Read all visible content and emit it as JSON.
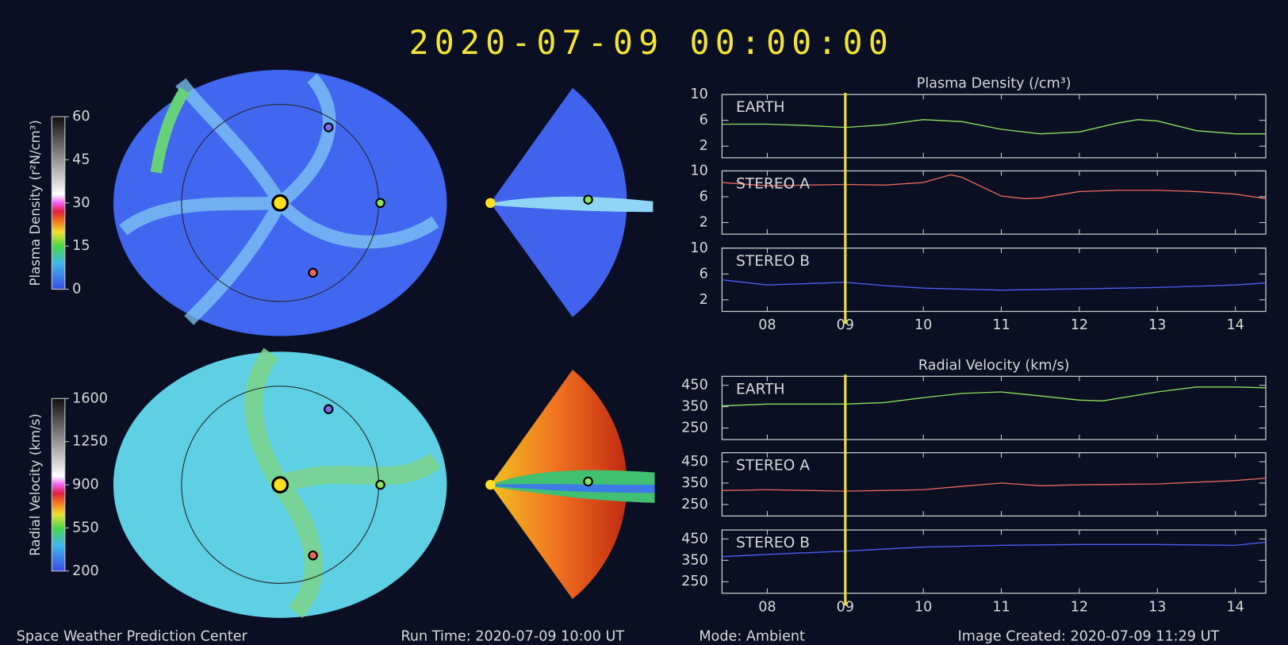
{
  "header": {
    "title": "2020-07-09  00:00:00"
  },
  "colorbars": [
    {
      "label": "Plasma Density (r²N/cm³)",
      "lim": [
        0,
        60
      ],
      "ticks": [
        0,
        15,
        30,
        45,
        60
      ]
    },
    {
      "label": "Radial Velocity (km/s)",
      "lim": [
        200,
        1600
      ],
      "ticks": [
        200,
        550,
        900,
        1250,
        1600
      ]
    }
  ],
  "chart_data": [
    {
      "type": "line",
      "title": "Plasma Density (/cm³)",
      "x": [
        7.42,
        8,
        8.5,
        9,
        9.5,
        10,
        10.5,
        11,
        11.5,
        12,
        12.5,
        12.75,
        13,
        13.5,
        14,
        14.39
      ],
      "series": [
        {
          "name": "EARTH",
          "color": "#8be25e",
          "values": [
            5.4,
            5.4,
            5.2,
            4.9,
            5.3,
            6.1,
            5.8,
            4.6,
            3.9,
            4.2,
            5.6,
            6.1,
            5.9,
            4.4,
            3.9,
            3.9
          ]
        }
      ],
      "xlim": [
        7.42,
        14.39
      ],
      "xticks": [
        8,
        9,
        10,
        11,
        12,
        13,
        14
      ],
      "ylim": [
        0.2,
        10
      ],
      "yticks": [
        2,
        6,
        10
      ],
      "vline": 9,
      "vline_color": "#f5e52a"
    },
    {
      "type": "line",
      "x": [
        7.42,
        8,
        9,
        9.5,
        10,
        10.35,
        10.5,
        11,
        11.3,
        11.5,
        12,
        12.5,
        13,
        13.5,
        14,
        14.39
      ],
      "series": [
        {
          "name": "STEREO A",
          "color": "#e8685a",
          "values": [
            8.2,
            7.7,
            7.9,
            7.8,
            8.2,
            9.4,
            9,
            6.1,
            5.7,
            5.8,
            6.8,
            7,
            7,
            6.8,
            6.4,
            5.7
          ]
        }
      ],
      "xlim": [
        7.42,
        14.39
      ],
      "xticks": [
        8,
        9,
        10,
        11,
        12,
        13,
        14
      ],
      "ylim": [
        0.2,
        10
      ],
      "yticks": [
        2,
        6,
        10
      ],
      "vline": 9,
      "vline_color": "#f5e52a"
    },
    {
      "type": "line",
      "x": [
        7.42,
        8,
        9,
        9.5,
        10,
        11,
        12,
        13,
        14,
        14.39
      ],
      "series": [
        {
          "name": "STEREO B",
          "color": "#4b5ff0",
          "values": [
            5.1,
            4.3,
            4.7,
            4.2,
            3.8,
            3.5,
            3.7,
            3.9,
            4.3,
            4.6
          ]
        }
      ],
      "xlim": [
        7.42,
        14.39
      ],
      "xticks": [
        {
          "value": 8,
          "label": "08"
        },
        {
          "value": 9,
          "label": "09"
        },
        10,
        11,
        12,
        13,
        14
      ],
      "ylim": [
        0.2,
        10
      ],
      "yticks": [
        2,
        6,
        10
      ],
      "vline": 9,
      "vline_color": "#f5e52a"
    },
    {
      "type": "line",
      "title": "Radial Velocity (km/s)",
      "x": [
        7.42,
        8,
        9,
        9.5,
        10,
        10.5,
        11,
        11.5,
        12,
        12.3,
        13,
        13.5,
        14,
        14.39
      ],
      "series": [
        {
          "name": "EARTH",
          "color": "#8be25e",
          "values": [
            354,
            362,
            362,
            369,
            392,
            412,
            419,
            400,
            381,
            377,
            419,
            442,
            442,
            438
          ]
        }
      ],
      "xlim": [
        7.42,
        14.39
      ],
      "xticks": [
        8,
        9,
        10,
        11,
        12,
        13,
        14
      ],
      "ylim": [
        196,
        492
      ],
      "yticks": [
        250,
        350,
        450
      ],
      "vline": 9,
      "vline_color": "#f5e52a"
    },
    {
      "type": "line",
      "x": [
        7.42,
        8,
        9,
        10,
        10.5,
        11,
        11.5,
        12,
        13,
        14,
        14.39
      ],
      "series": [
        {
          "name": "STEREO A",
          "color": "#e8685a",
          "values": [
            315,
            319,
            312,
            319,
            335,
            350,
            338,
            342,
            346,
            362,
            373
          ]
        }
      ],
      "xlim": [
        7.42,
        14.39
      ],
      "xticks": [
        8,
        9,
        10,
        11,
        12,
        13,
        14
      ],
      "ylim": [
        196,
        492
      ],
      "yticks": [
        250,
        350,
        450
      ],
      "vline": 9,
      "vline_color": "#f5e52a"
    },
    {
      "type": "line",
      "x": [
        7.42,
        8,
        9,
        10,
        11,
        12,
        13,
        14,
        14.39
      ],
      "series": [
        {
          "name": "STEREO B",
          "color": "#4b5ff0",
          "values": [
            367,
            378,
            393,
            412,
            420,
            424,
            424,
            420,
            435
          ]
        }
      ],
      "xlim": [
        7.42,
        14.39
      ],
      "xticks": [
        {
          "value": 8,
          "label": "08"
        },
        {
          "value": 9,
          "label": "09"
        },
        10,
        11,
        12,
        13,
        14
      ],
      "ylim": [
        196,
        492
      ],
      "yticks": [
        250,
        350,
        450
      ],
      "vline": 9,
      "vline_color": "#f5e52a"
    }
  ],
  "footer": {
    "center": "Space Weather Prediction Center",
    "run_time": "Run Time: 2020-07-09 10:00 UT",
    "mode": "Mode: Ambient",
    "created": "Image Created: 2020-07-09 11:29 UT"
  }
}
